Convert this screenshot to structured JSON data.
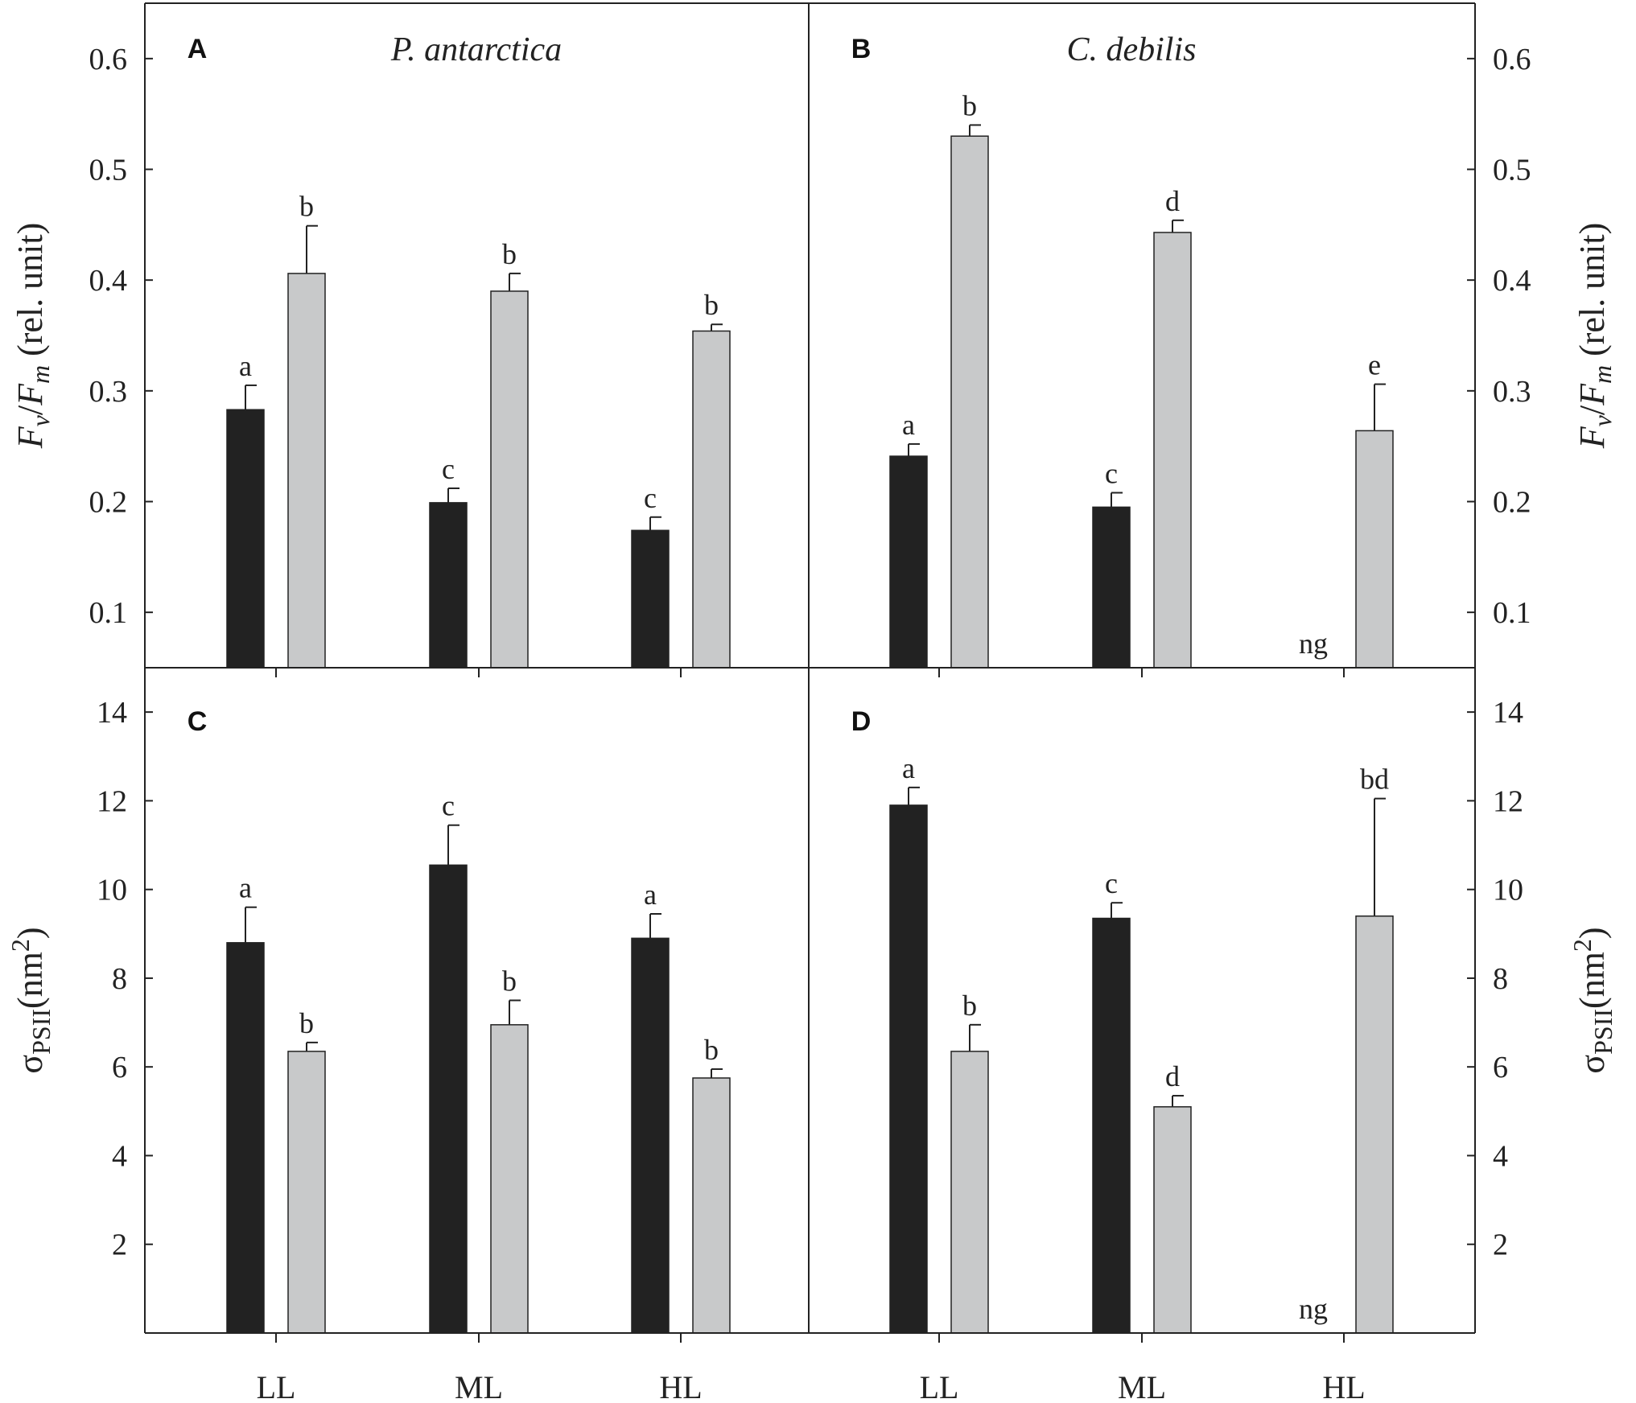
{
  "colors": {
    "dark": "#222222",
    "light": "#c8c9ca",
    "axis": "#222222",
    "text": "#222222"
  },
  "categories": [
    "LL",
    "ML",
    "HL"
  ],
  "chart_data": [
    {
      "type": "bar",
      "panel": "A",
      "title": "P. antarctica",
      "ylabel": "Fv/Fm (rel. unit)",
      "ylabel_parts": {
        "f1": "F",
        "sub1": "v",
        "slash": "/",
        "f2": "F",
        "sub2": "m",
        "unit": " (rel. unit)"
      },
      "ylim": [
        0.05,
        0.65
      ],
      "yticks": [
        0.1,
        0.2,
        0.3,
        0.4,
        0.5,
        0.6
      ],
      "tick_labels_side": "left",
      "categories": [
        "LL",
        "ML",
        "HL"
      ],
      "series": [
        {
          "name": "dark",
          "values": [
            0.283,
            0.199,
            0.174
          ],
          "errors": [
            0.022,
            0.013,
            0.012
          ],
          "labels": [
            "a",
            "c",
            "c"
          ]
        },
        {
          "name": "light",
          "values": [
            0.406,
            0.39,
            0.354
          ],
          "errors": [
            0.043,
            0.016,
            0.006
          ],
          "labels": [
            "b",
            "b",
            "b"
          ]
        }
      ]
    },
    {
      "type": "bar",
      "panel": "B",
      "title": "C. debilis",
      "ylabel": "Fv/Fm (rel. unit)",
      "ylabel_parts": {
        "f1": "F",
        "sub1": "v",
        "slash": "/",
        "f2": "F",
        "sub2": "m",
        "unit": " (rel. unit)"
      },
      "ylim": [
        0.05,
        0.65
      ],
      "yticks": [
        0.1,
        0.2,
        0.3,
        0.4,
        0.5,
        0.6
      ],
      "tick_labels_side": "right",
      "categories": [
        "LL",
        "ML",
        "HL"
      ],
      "series": [
        {
          "name": "dark",
          "values": [
            0.241,
            0.195,
            null
          ],
          "errors": [
            0.011,
            0.013,
            null
          ],
          "labels": [
            "a",
            "c",
            "ng"
          ]
        },
        {
          "name": "light",
          "values": [
            0.53,
            0.443,
            0.264
          ],
          "errors": [
            0.01,
            0.011,
            0.042
          ],
          "labels": [
            "b",
            "d",
            "e"
          ]
        }
      ]
    },
    {
      "type": "bar",
      "panel": "C",
      "title": "",
      "ylabel": "σPSII(nm2)",
      "ylabel_parts": {
        "sigma": "σ",
        "sub": "PSII",
        "unit": "(nm",
        "sup": "2",
        "close": ")"
      },
      "ylim": [
        0,
        15
      ],
      "yticks": [
        2,
        4,
        6,
        8,
        10,
        12,
        14
      ],
      "tick_labels_side": "left",
      "categories": [
        "LL",
        "ML",
        "HL"
      ],
      "series": [
        {
          "name": "dark",
          "values": [
            8.8,
            10.55,
            8.9
          ],
          "errors": [
            0.8,
            0.9,
            0.55
          ],
          "labels": [
            "a",
            "c",
            "a"
          ]
        },
        {
          "name": "light",
          "values": [
            6.35,
            6.95,
            5.75
          ],
          "errors": [
            0.2,
            0.55,
            0.2
          ],
          "labels": [
            "b",
            "b",
            "b"
          ]
        }
      ]
    },
    {
      "type": "bar",
      "panel": "D",
      "title": "",
      "ylabel": "σPSII(nm2)",
      "ylabel_parts": {
        "sigma": "σ",
        "sub": "PSII",
        "unit": "(nm",
        "sup": "2",
        "close": ")"
      },
      "ylim": [
        0,
        15
      ],
      "yticks": [
        2,
        4,
        6,
        8,
        10,
        12,
        14
      ],
      "tick_labels_side": "right",
      "categories": [
        "LL",
        "ML",
        "HL"
      ],
      "series": [
        {
          "name": "dark",
          "values": [
            11.9,
            9.35,
            null
          ],
          "errors": [
            0.4,
            0.35,
            null
          ],
          "labels": [
            "a",
            "c",
            "ng"
          ]
        },
        {
          "name": "light",
          "values": [
            6.35,
            5.1,
            9.4
          ],
          "errors": [
            0.6,
            0.25,
            2.65
          ],
          "labels": [
            "b",
            "d",
            "bd"
          ]
        }
      ]
    }
  ]
}
